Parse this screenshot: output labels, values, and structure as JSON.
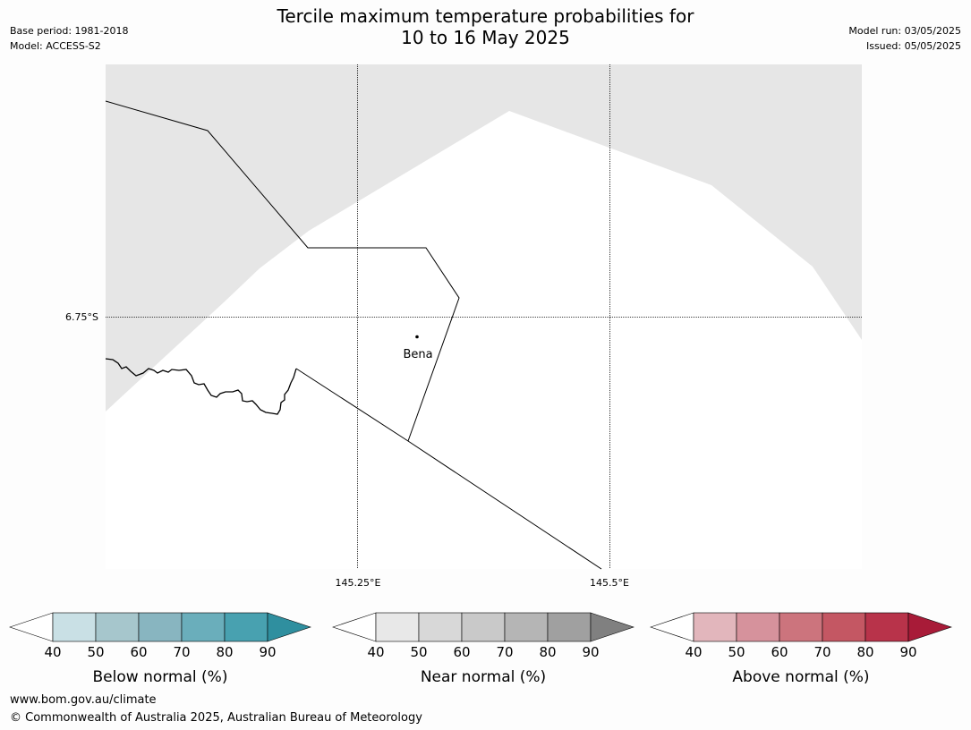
{
  "header": {
    "title_line1": "Tercile maximum temperature probabilities for",
    "title_line2": "10 to 16 May 2025",
    "base_period": "Base period: 1981-2018",
    "model": "Model: ACCESS-S2",
    "model_run": "Model run: 03/05/2025",
    "issued": "Issued: 05/05/2025"
  },
  "map": {
    "place_label": "Bena",
    "lat_label": "6.75°S",
    "lon_labels": [
      "145.25°E",
      "145.5°E"
    ],
    "colors": {
      "masked_fill": "#e6e6e6",
      "land_fill": "#ffffff"
    }
  },
  "colorbars": [
    {
      "label": "Below normal (%)",
      "ticks": [
        "40",
        "50",
        "60",
        "70",
        "80",
        "90"
      ],
      "colors": [
        "#ffffff",
        "#c9e0e5",
        "#a6c6cc",
        "#88b5c0",
        "#6aaebb",
        "#48a1b0",
        "#2f8f9f"
      ]
    },
    {
      "label": "Near normal (%)",
      "ticks": [
        "40",
        "50",
        "60",
        "70",
        "80",
        "90"
      ],
      "colors": [
        "#ffffff",
        "#e8e8e8",
        "#d8d8d8",
        "#c9c9c9",
        "#b5b5b5",
        "#a0a0a0",
        "#808080"
      ]
    },
    {
      "label": "Above normal (%)",
      "ticks": [
        "40",
        "50",
        "60",
        "70",
        "80",
        "90"
      ],
      "colors": [
        "#ffffff",
        "#e2b6bc",
        "#d6929c",
        "#cc747d",
        "#c45763",
        "#b8334a",
        "#a81b38"
      ]
    }
  ],
  "footer": {
    "url": "www.bom.gov.au/climate",
    "copyright": "© Commonwealth of Australia 2025, Australian Bureau of Meteorology"
  }
}
